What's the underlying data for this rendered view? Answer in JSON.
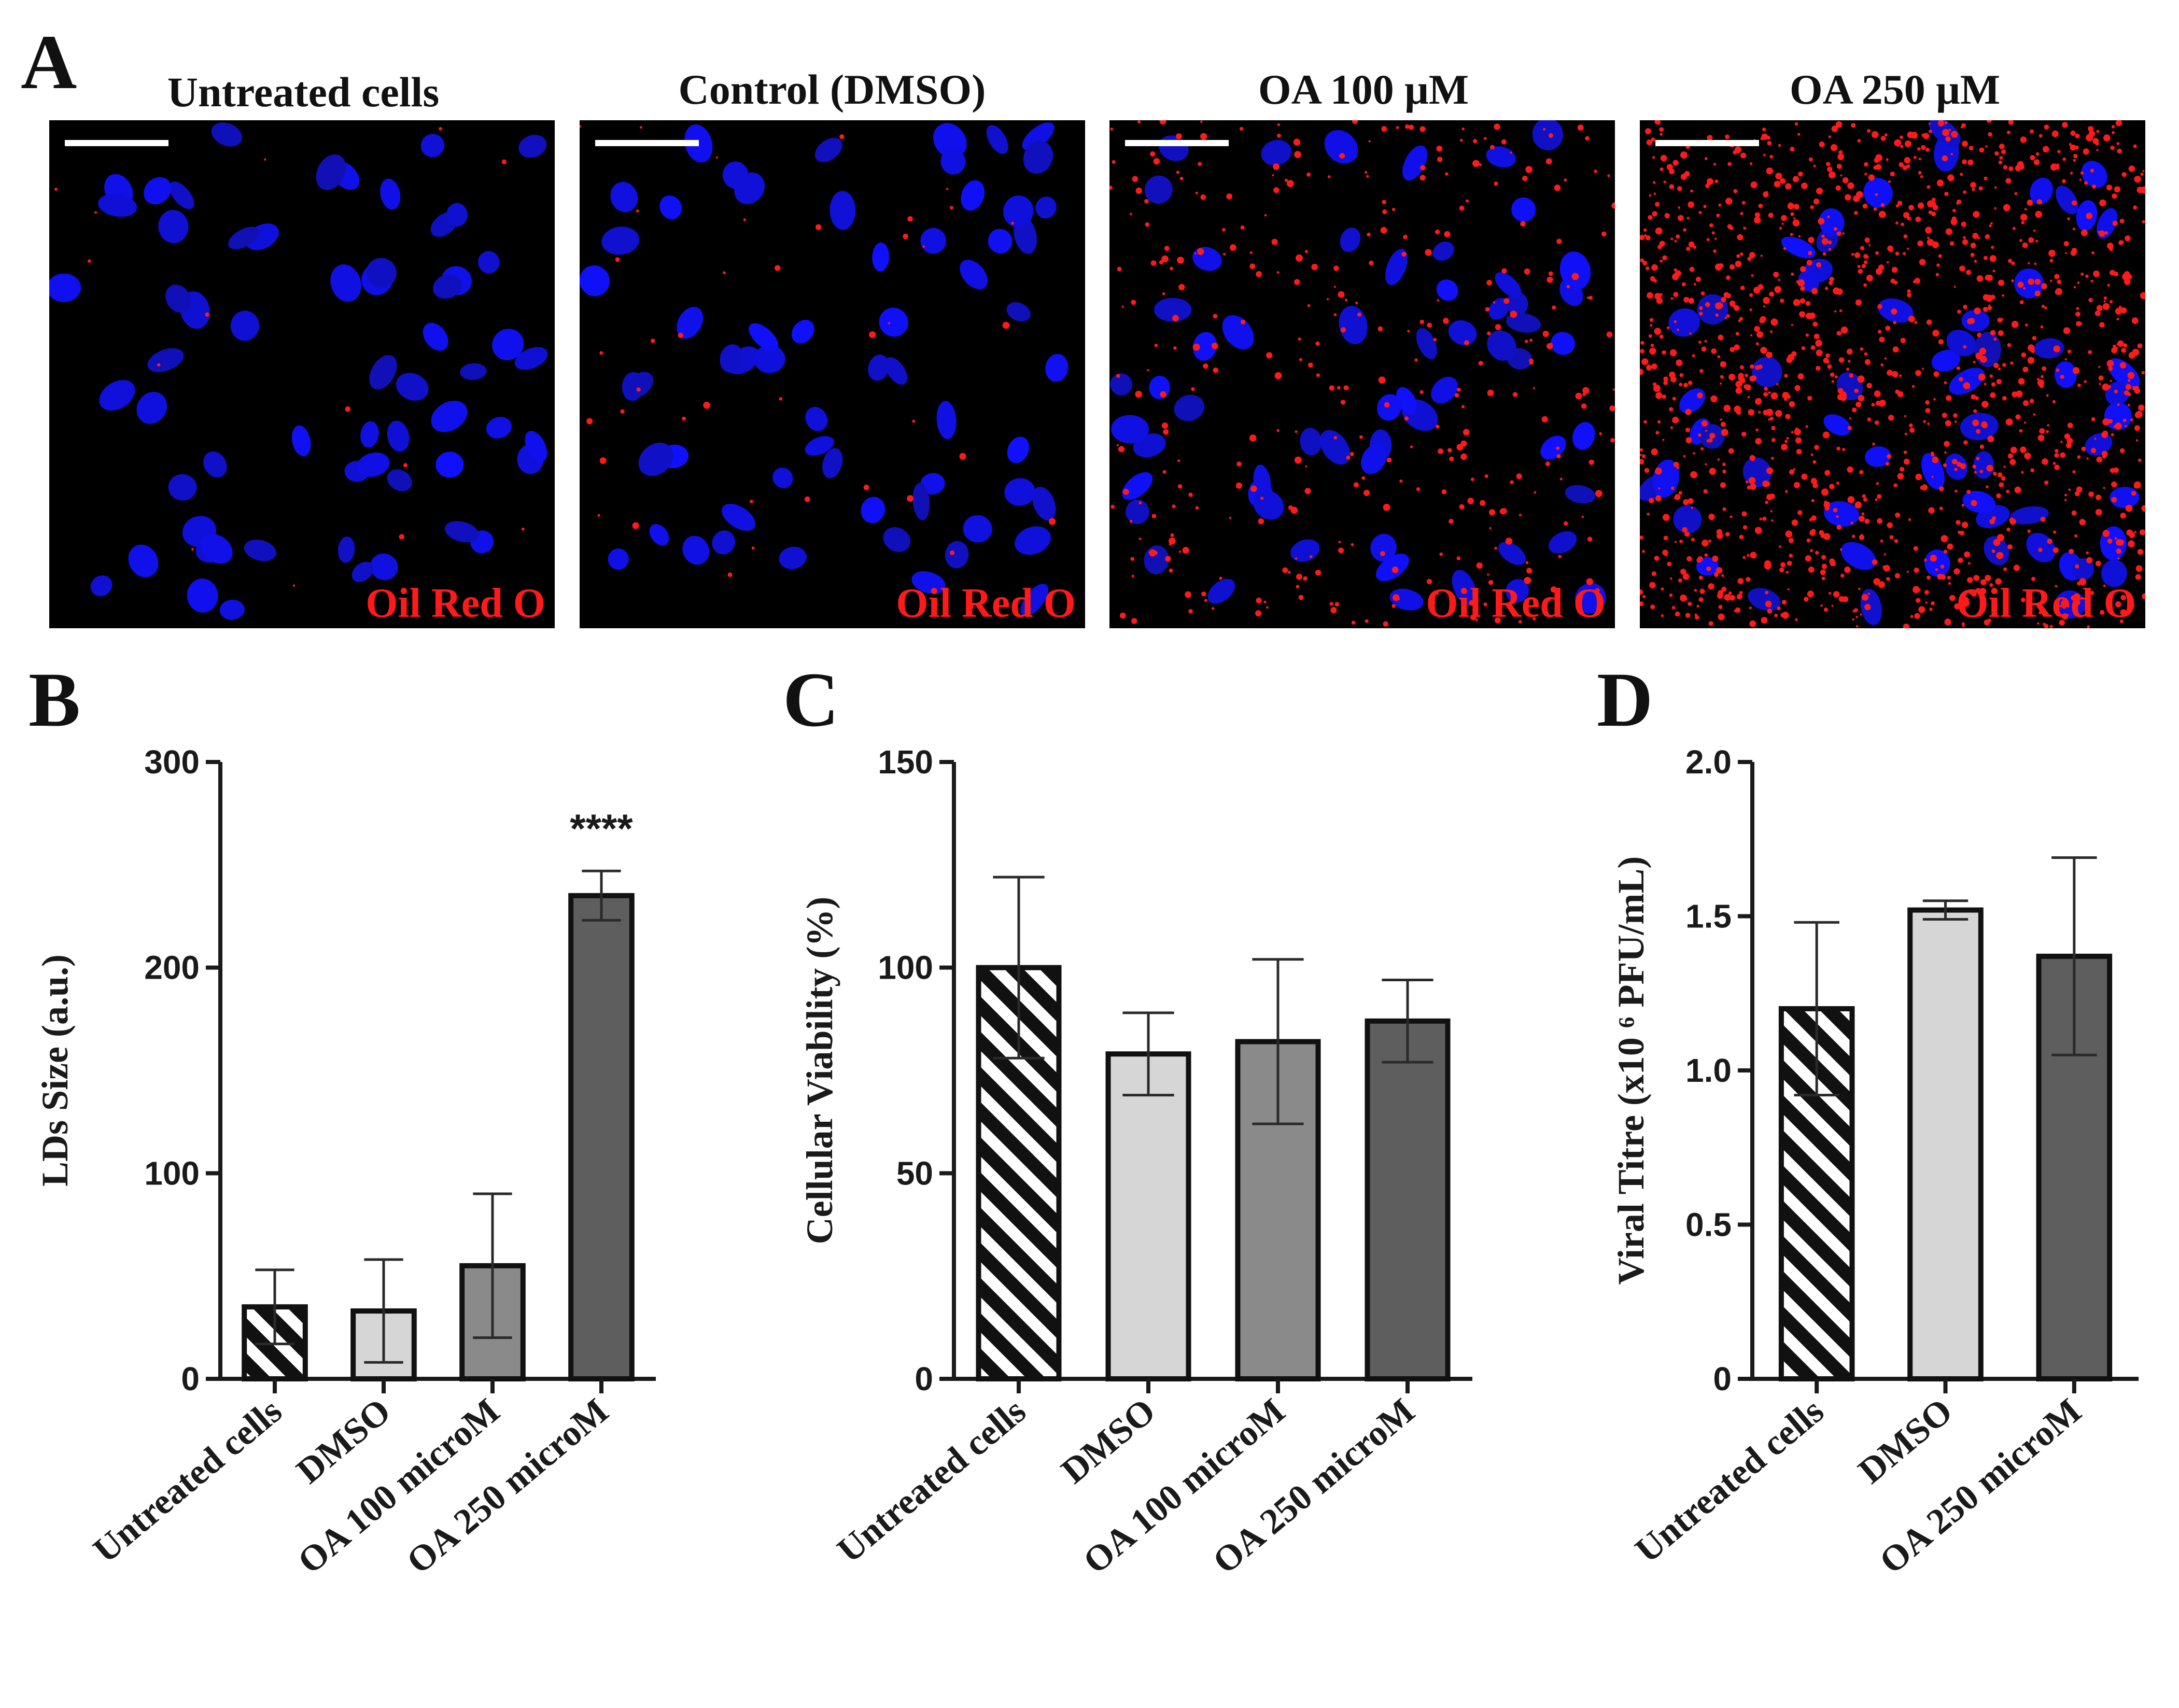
{
  "panel_letters": [
    "A",
    "B",
    "C",
    "D"
  ],
  "micrographs": {
    "titles": [
      "Untreated cells",
      "Control (DMSO)",
      "OA 100 μM",
      "OA 250 μM"
    ],
    "stain_label": "Oil Red O",
    "lipid_density": [
      0.01,
      0.03,
      0.25,
      1.0
    ],
    "colors": {
      "nuclei": "#1010ee",
      "lipid": "#ff1a1a",
      "scale_bar": "#ffffff",
      "background": "#000000"
    }
  },
  "bar_styles": {
    "Untreated cells": {
      "fill": "hatch"
    },
    "DMSO": {
      "fill": "#d6d6d6"
    },
    "OA 100 microM": {
      "fill": "#8a8a8a"
    },
    "OA 250 microM": {
      "fill": "#5e5e5e"
    }
  },
  "chart_data": [
    {
      "panel": "B",
      "type": "bar",
      "title": "",
      "ylabel": "LDs Size (a.u.)",
      "xlabel": "",
      "categories": [
        "Untreated cells",
        "DMSO",
        "OA 100 microM",
        "OA 250 microM"
      ],
      "values": [
        35,
        33,
        55,
        235
      ],
      "errors": [
        18,
        25,
        35,
        12
      ],
      "ylim": [
        0,
        300
      ],
      "yticks": [
        "0",
        "100",
        "200",
        "300"
      ],
      "ytick_values": [
        0,
        100,
        200,
        300
      ],
      "annotations": [
        {
          "category": "OA 250 microM",
          "text": "****"
        }
      ]
    },
    {
      "panel": "C",
      "type": "bar",
      "title": "",
      "ylabel": "Cellular Viability (%)",
      "xlabel": "",
      "categories": [
        "Untreated cells",
        "DMSO",
        "OA 100 microM",
        "OA 250 microM"
      ],
      "values": [
        100,
        79,
        82,
        87
      ],
      "errors": [
        22,
        10,
        20,
        10
      ],
      "ylim": [
        0,
        150
      ],
      "yticks": [
        "0",
        "50",
        "100",
        "150"
      ],
      "ytick_values": [
        0,
        50,
        100,
        150
      ],
      "annotations": []
    },
    {
      "panel": "D",
      "type": "bar",
      "title": "",
      "ylabel": "Viral Titre (x10 ⁶ PFU/mL)",
      "xlabel": "",
      "categories": [
        "Untreated cells",
        "DMSO",
        "OA 250 microM"
      ],
      "values": [
        1.2,
        1.52,
        1.37
      ],
      "errors": [
        0.28,
        0.03,
        0.32
      ],
      "ylim": [
        0,
        2.0
      ],
      "yticks": [
        "0",
        "0.5",
        "1.0",
        "1.5",
        "2.0"
      ],
      "ytick_values": [
        0,
        0.5,
        1.0,
        1.5,
        2.0
      ],
      "annotations": []
    }
  ]
}
